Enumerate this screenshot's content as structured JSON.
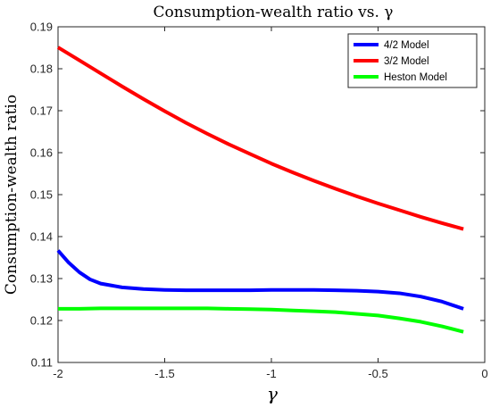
{
  "chart_data": {
    "type": "line",
    "title": "Consumption-wealth ratio vs. γ",
    "xlabel": "γ",
    "ylabel": "Consumption-wealth ratio",
    "xlim": [
      -2,
      0
    ],
    "ylim": [
      0.11,
      0.19
    ],
    "xticks": [
      -2,
      -1.5,
      -1,
      -0.5,
      0
    ],
    "xtick_labels": [
      "-2",
      "-1.5",
      "-1",
      "-0.5",
      "0"
    ],
    "yticks": [
      0.11,
      0.12,
      0.13,
      0.14,
      0.15,
      0.16,
      0.17,
      0.18,
      0.19
    ],
    "ytick_labels": [
      "0.11",
      "0.12",
      "0.13",
      "0.14",
      "0.15",
      "0.16",
      "0.17",
      "0.18",
      "0.19"
    ],
    "grid": false,
    "legend_position": "top-right",
    "series": [
      {
        "name": "4/2 Model",
        "color": "#0000ff",
        "x": [
          -2.0,
          -1.95,
          -1.9,
          -1.85,
          -1.8,
          -1.7,
          -1.6,
          -1.5,
          -1.4,
          -1.3,
          -1.2,
          -1.1,
          -1.0,
          -0.9,
          -0.8,
          -0.7,
          -0.6,
          -0.5,
          -0.4,
          -0.3,
          -0.2,
          -0.1
        ],
        "y": [
          0.1367,
          0.1338,
          0.1315,
          0.1298,
          0.1288,
          0.1279,
          0.1275,
          0.1273,
          0.1272,
          0.1272,
          0.1272,
          0.1272,
          0.1273,
          0.1273,
          0.1273,
          0.1272,
          0.1271,
          0.1269,
          0.1265,
          0.1257,
          0.1245,
          0.1228
        ]
      },
      {
        "name": "3/2 Model",
        "color": "#ff0000",
        "x": [
          -2.0,
          -1.9,
          -1.8,
          -1.7,
          -1.6,
          -1.5,
          -1.4,
          -1.3,
          -1.2,
          -1.1,
          -1.0,
          -0.9,
          -0.8,
          -0.7,
          -0.6,
          -0.5,
          -0.4,
          -0.3,
          -0.2,
          -0.1
        ],
        "y": [
          0.1851,
          0.182,
          0.1789,
          0.1758,
          0.1728,
          0.1699,
          0.1671,
          0.1645,
          0.162,
          0.1597,
          0.1574,
          0.1553,
          0.1533,
          0.1514,
          0.1496,
          0.1479,
          0.1463,
          0.1447,
          0.1432,
          0.1418
        ]
      },
      {
        "name": "Heston Model",
        "color": "#00ff00",
        "x": [
          -2.0,
          -1.9,
          -1.8,
          -1.7,
          -1.6,
          -1.5,
          -1.4,
          -1.3,
          -1.2,
          -1.1,
          -1.0,
          -0.9,
          -0.8,
          -0.7,
          -0.6,
          -0.5,
          -0.4,
          -0.3,
          -0.2,
          -0.1
        ],
        "y": [
          0.1228,
          0.1228,
          0.1229,
          0.1229,
          0.1229,
          0.1229,
          0.1229,
          0.1229,
          0.1228,
          0.1227,
          0.1226,
          0.1224,
          0.1222,
          0.122,
          0.1216,
          0.1212,
          0.1205,
          0.1197,
          0.1186,
          0.1173
        ]
      }
    ]
  }
}
